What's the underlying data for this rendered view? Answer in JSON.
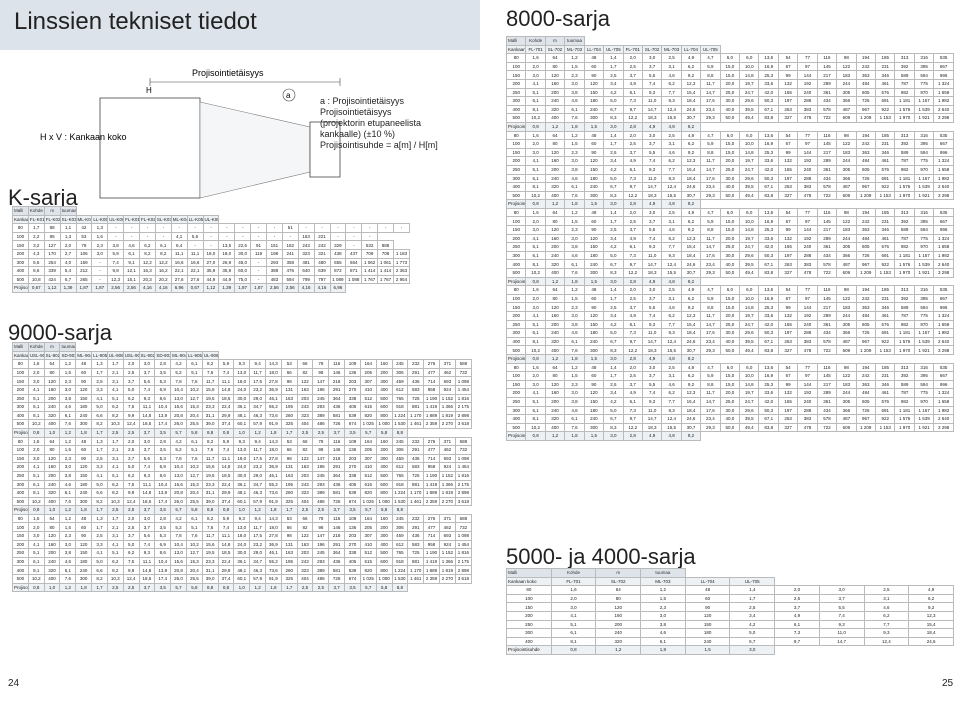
{
  "left_page": {
    "title": "Linssien tekniset tiedot",
    "k_series": "K-sarja",
    "series_9000": "9000-sarja",
    "diagram_label_hv": "H x V : Kankaan koko",
    "diagram_top_label": "Projisointietäisyys",
    "diagram_h": "H",
    "diagram_v": "V",
    "diagram_a": "a",
    "note_line1": "a : Projisointietäisyys",
    "note_line2": "Projisointietäisyys",
    "note_line3": "(projektorin etupaneelista",
    "note_line4": "kankaalle) (±10 %)",
    "note_line5": "Projisointisuhde = a[m] / H[m]",
    "page_number": "24",
    "k_header_model": "Malli",
    "k_header_kohde": "Kohde",
    "k_header_m": "m",
    "k_header_feet": "tuumaa",
    "k_col_screen": "Kankaan koko",
    "k_lenses": [
      "FL-K01",
      "FL-K02",
      "SL-K03",
      "ML-K04",
      "LL-K05",
      "UL-K06",
      "FL-K01",
      "FL-K02",
      "SL-K03",
      "ML-K04",
      "LL-K05",
      "UL-K06"
    ],
    "k_side": "Projisointietäisyys",
    "k_model": "CP-WU700",
    "k_rows": [
      [
        "80",
        "1,7",
        "88",
        "1,1",
        "42",
        "1,3",
        "-",
        "-",
        "-",
        "-",
        "-",
        "-",
        "-",
        "-",
        "-",
        "-",
        "-",
        "51",
        "-",
        "-",
        "-",
        "-",
        "-",
        "-",
        "-"
      ],
      [
        "100",
        "2,2",
        "85",
        "1,3",
        "53",
        "1,6",
        "-",
        "-",
        "-",
        "-",
        "4,1",
        "5,6",
        "-",
        "-",
        "-",
        "-",
        "-",
        "-",
        "163",
        "221",
        "-",
        "-",
        "-"
      ],
      [
        "150",
        "3,2",
        "127",
        "2,0",
        "79",
        "2,3",
        "3,8",
        "4,6",
        "6,2",
        "6,1",
        "8,4",
        "-",
        "-",
        "13,5",
        "22,6",
        "91",
        "151",
        "182",
        "243",
        "242",
        "329",
        "-",
        "532",
        "888"
      ],
      [
        "200",
        "4,3",
        "170",
        "2,7",
        "106",
        "3,0",
        "5,9",
        "6,1",
        "8,2",
        "8,2",
        "11,1",
        "11,1",
        "18,0",
        "18,0",
        "30,0",
        "119",
        "198",
        "241",
        "323",
        "321",
        "438",
        "437",
        "709",
        "708",
        "1 183"
      ],
      [
        "300",
        "6,5",
        "254",
        "4,0",
        "159",
        "-",
        "7,4",
        "9,1",
        "12,2",
        "12,2",
        "16,6",
        "16,6",
        "27,0",
        "26,9",
        "45,0",
        "-",
        "293",
        "358",
        "481",
        "480",
        "655",
        "654",
        "1 062",
        "1 061",
        "1 773"
      ],
      [
        "400",
        "8,6",
        "339",
        "5,4",
        "212",
        "-",
        "9,8",
        "12,1",
        "16,3",
        "16,2",
        "22,1",
        "22,1",
        "35,9",
        "35,9",
        "60,0",
        "-",
        "388",
        "476",
        "640",
        "639",
        "872",
        "871",
        "1 414",
        "1 414",
        "2 363"
      ],
      [
        "500",
        "10,8",
        "424",
        "6,7",
        "265",
        "-",
        "12,3",
        "15,1",
        "20,3",
        "20,2",
        "27,6",
        "27,6",
        "44,9",
        "44,9",
        "75,0",
        "-",
        "483",
        "594",
        "799",
        "797",
        "1 089",
        "1 088",
        "1 767",
        "1 767",
        "2 954"
      ]
    ],
    "k_ratio_label": "Projisointisuhde",
    "k_ratio": [
      "0,67",
      "1,12",
      "1,39",
      "1,87",
      "1,87",
      "2,56",
      "2,56",
      "4,16",
      "4,16",
      "6,96",
      "0,67",
      "1,12",
      "1,39",
      "1,87",
      "1,87",
      "2,56",
      "2,56",
      "4,16",
      "4,16",
      "6,96"
    ],
    "s9000_lenses": [
      "USL-901",
      "SL-902",
      "SD-903X",
      "ML-904",
      "LL-905",
      "UL-906",
      "USL-901",
      "SL-902",
      "SD-903X",
      "ML-904",
      "LL-905",
      "UL-906"
    ],
    "s9000_models": [
      "CP-X9110",
      "CP-WX9210",
      "CP-WU9410 CP-WU9411",
      "CP-SX9500 CP-SX9511"
    ],
    "s9000_rows": [
      [
        "80",
        "1,6",
        "64",
        "1,2",
        "48",
        "1,3",
        "1,7",
        "2,0",
        "3,0",
        "2,8",
        "4,2",
        "6,1",
        "8,2",
        "5,9",
        "9,3",
        "9,4",
        "14,3",
        "53",
        "66",
        "78",
        "116",
        "109",
        "164",
        "160",
        "245",
        "232",
        "276",
        "371",
        "588"
      ],
      [
        "100",
        "2,0",
        "80",
        "1,5",
        "60",
        "1,7",
        "2,1",
        "2,5",
        "3,7",
        "3,5",
        "5,2",
        "5,1",
        "7,6",
        "7,4",
        "13,0",
        "11,7",
        "18,0",
        "66",
        "82",
        "98",
        "146",
        "136",
        "205",
        "200",
        "306",
        "291",
        "477",
        "462",
        "732"
      ],
      [
        "150",
        "3,0",
        "120",
        "2,3",
        "90",
        "2,5",
        "3,1",
        "3,7",
        "5,6",
        "5,3",
        "7,8",
        "7,6",
        "11,7",
        "11,1",
        "18,0",
        "17,5",
        "27,8",
        "98",
        "122",
        "147",
        "218",
        "203",
        "307",
        "300",
        "459",
        "436",
        "714",
        "693",
        "1 098"
      ],
      [
        "200",
        "4,1",
        "160",
        "3,0",
        "120",
        "3,3",
        "4,1",
        "5,0",
        "7,4",
        "6,9",
        "10,4",
        "10,2",
        "15,6",
        "14,8",
        "24,0",
        "23,2",
        "36,9",
        "131",
        "163",
        "196",
        "291",
        "270",
        "410",
        "400",
        "612",
        "583",
        "958",
        "924",
        "1 454"
      ],
      [
        "250",
        "5,1",
        "200",
        "3,8",
        "150",
        "4,1",
        "5,1",
        "6,2",
        "9,3",
        "8,6",
        "13,0",
        "12,7",
        "19,5",
        "18,5",
        "30,0",
        "29,0",
        "46,1",
        "163",
        "203",
        "245",
        "364",
        "338",
        "512",
        "500",
        "765",
        "725",
        "1 190",
        "1 152",
        "1 816"
      ],
      [
        "300",
        "6,1",
        "240",
        "4,6",
        "180",
        "5,0",
        "6,2",
        "7,5",
        "11,1",
        "10,4",
        "15,6",
        "15,3",
        "23,3",
        "22,4",
        "36,1",
        "34,7",
        "55,2",
        "195",
        "243",
        "293",
        "436",
        "405",
        "615",
        "600",
        "918",
        "881",
        "1 419",
        "1 366",
        "2 175"
      ],
      [
        "400",
        "8,1",
        "320",
        "6,1",
        "240",
        "6,6",
        "8,2",
        "9,9",
        "14,8",
        "13,9",
        "20,8",
        "20,4",
        "31,1",
        "29,9",
        "48,1",
        "46,3",
        "73,6",
        "260",
        "323",
        "389",
        "581",
        "539",
        "820",
        "800",
        "1 224",
        "1 170",
        "1 889",
        "1 819",
        "2 898"
      ],
      [
        "500",
        "10,2",
        "400",
        "7,6",
        "300",
        "8,2",
        "10,3",
        "12,4",
        "18,5",
        "17,4",
        "26,0",
        "25,5",
        "39,0",
        "37,4",
        "60,1",
        "57,9",
        "91,9",
        "325",
        "404",
        "486",
        "726",
        "674",
        "1 025",
        "1 000",
        "1 530",
        "1 461",
        "2 359",
        "2 270",
        "3 618"
      ]
    ],
    "s9000_ratio": [
      "0,8",
      "1,0",
      "1,2",
      "1,8",
      "1,7",
      "2,5",
      "2,5",
      "3,7",
      "3,5",
      "5,7",
      "5,8",
      "8,8",
      "0,8",
      "1,0",
      "1,2",
      "1,8",
      "1,7",
      "2,5",
      "2,5",
      "3,7",
      "3,5",
      "5,7",
      "5,8",
      "8,8"
    ]
  },
  "right_page": {
    "series_8000": "8000-sarja",
    "series_5000": "5000- ja 4000-sarja",
    "page_number": "25",
    "r_header_model": "Malli",
    "r_header_kohde": "Kohde",
    "r_header_m": "m",
    "r_header_feet": "tuumaa",
    "r_col_screen": "Kankaan koko",
    "r_lenses": [
      "FL-701",
      "SL-702",
      "ML-703",
      "LL-704",
      "UL-705",
      "FL-701",
      "SL-702",
      "ML-703",
      "LL-704",
      "UL-705"
    ],
    "r_side": "Projisointietäisyys",
    "r_models": [
      "CP-X8170 CP-X8160",
      "CP-WX8265 CP-WX8255A",
      "CP-WU8460 CP-WU8451 CP-WU8450 CP-WU8440",
      "CP-SX8350",
      "CP-X8150",
      "CP-WX8240",
      "CP-X5022WN"
    ],
    "r_rows_8000": [
      [
        "80",
        "1,6",
        "64",
        "1,2",
        "48",
        "1,4",
        "2,0",
        "3,0",
        "2,5",
        "4,9",
        "4,7",
        "6,0",
        "6,0",
        "13,6",
        "54",
        "77",
        "116",
        "98",
        "194",
        "185",
        "313",
        "316",
        "535"
      ],
      [
        "100",
        "2,0",
        "80",
        "1,5",
        "60",
        "1,7",
        "2,5",
        "3,7",
        "3,1",
        "6,2",
        "5,9",
        "15,0",
        "10,0",
        "16,9",
        "67",
        "97",
        "145",
        "122",
        "242",
        "231",
        "392",
        "395",
        "667"
      ],
      [
        "150",
        "3,0",
        "120",
        "2,3",
        "90",
        "2,5",
        "3,7",
        "5,5",
        "4,6",
        "9,2",
        "8,8",
        "15,0",
        "14,8",
        "25,3",
        "99",
        "144",
        "217",
        "183",
        "363",
        "346",
        "589",
        "594",
        "996"
      ],
      [
        "200",
        "4,1",
        "160",
        "3,0",
        "120",
        "3,4",
        "4,9",
        "7,4",
        "6,2",
        "12,3",
        "11,7",
        "20,0",
        "19,7",
        "33,6",
        "132",
        "192",
        "289",
        "244",
        "484",
        "461",
        "787",
        "775",
        "1 324"
      ],
      [
        "250",
        "5,1",
        "200",
        "3,8",
        "150",
        "4,2",
        "6,1",
        "9,3",
        "7,7",
        "15,4",
        "14,7",
        "25,0",
        "24,7",
        "42,0",
        "165",
        "240",
        "361",
        "305",
        "605",
        "576",
        "982",
        "970",
        "1 658"
      ],
      [
        "300",
        "6,1",
        "240",
        "4,6",
        "180",
        "5,0",
        "7,3",
        "11,0",
        "9,3",
        "18,4",
        "17,6",
        "30,0",
        "29,6",
        "50,3",
        "197",
        "288",
        "434",
        "366",
        "726",
        "691",
        "1 181",
        "1 157",
        "1 982"
      ],
      [
        "400",
        "8,1",
        "320",
        "6,1",
        "240",
        "6,7",
        "9,7",
        "14,7",
        "12,4",
        "24,6",
        "23,4",
        "40,0",
        "39,5",
        "67,1",
        "263",
        "383",
        "578",
        "487",
        "967",
        "922",
        "1 576",
        "1 539",
        "2 640"
      ],
      [
        "500",
        "10,2",
        "400",
        "7,6",
        "300",
        "8,3",
        "12,2",
        "18,3",
        "15,5",
        "30,7",
        "29,3",
        "50,0",
        "49,4",
        "83,8",
        "327",
        "478",
        "722",
        "609",
        "1 209",
        "1 153",
        "1 970",
        "1 921",
        "3 298"
      ]
    ],
    "r_ratio_8000": [
      "0,8",
      "1,2",
      "1,8",
      "1,5",
      "3,0",
      "2,8",
      "4,9",
      "4,8",
      "8,2"
    ]
  }
}
